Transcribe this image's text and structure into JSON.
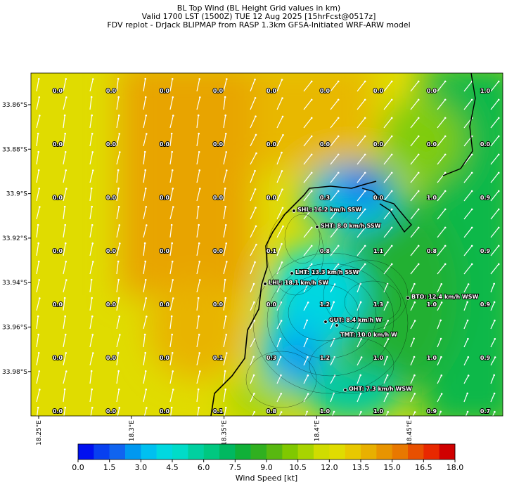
{
  "header": {
    "lines": [
      "BL Top Wind (BL Height Grid values in km)",
      "Valid 1700 LST (1500Z) TUE 12 Aug 2025 [15hrFcst@0517z]",
      "FDV replot - DrJack BLIPMAP from RASP 1.3km GFSA-Initiated WRF-ARW model"
    ]
  },
  "grid_labels": {
    "rows": [
      [
        "0.0",
        "0.0",
        "0.0",
        "0.0",
        "0.0",
        "0.0",
        "0.0",
        "0.0",
        "1.0"
      ],
      [
        "0.0",
        "0.0",
        "0.0",
        "0.0",
        "0.0",
        "0.0",
        "0.0",
        "0.0",
        "0.0"
      ],
      [
        "0.0",
        "0.0",
        "0.0",
        "0.0",
        "0.0",
        "0.3",
        "0.0",
        "1.0",
        "0.9"
      ],
      [
        "0.0",
        "0.0",
        "0.0",
        "0.0",
        "0.1",
        "0.8",
        "1.1",
        "0.8",
        "0.9"
      ],
      [
        "0.0",
        "0.0",
        "0.0",
        "0.0",
        "0.0",
        "1.2",
        "1.3",
        "1.0",
        "0.9"
      ],
      [
        "0.0",
        "0.0",
        "0.0",
        "0.1",
        "0.3",
        "1.2",
        "1.0",
        "1.0",
        "0.9"
      ],
      [
        "0.0",
        "0.0",
        "0.0",
        "0.1",
        "0.8",
        "1.0",
        "1.0",
        "0.9",
        "0.7"
      ]
    ]
  },
  "stations": [
    "SHL: 16.2 km/h SSW",
    "SHT: 8.0 km/h SSW",
    "LHT: 13.3 km/h SSW",
    "LHL: 18.1 km/h SW",
    "BTO: 12.4 km/h WSW",
    "GUT: 8.4 km/h W",
    "TMT: 10.0 km/h W",
    "OHT: 7.3 km/h WSW"
  ],
  "lat_labels": [
    "33.86°S",
    "33.88°S",
    "33.9°S",
    "33.92°S",
    "33.94°S",
    "33.96°S",
    "33.98°S"
  ],
  "lon_labels": [
    "18.25°E",
    "18.3°E",
    "18.35°E",
    "18.4°E",
    "18.45°E"
  ],
  "colorbar": {
    "label": "Wind Speed [kt]",
    "lim": [
      0,
      18
    ],
    "ticks": [
      {
        "value": 0,
        "label": "0.0"
      },
      {
        "value": 1.5,
        "label": "1.5"
      },
      {
        "value": 3,
        "label": "3.0"
      },
      {
        "value": 4.5,
        "label": "4.5"
      },
      {
        "value": 6,
        "label": "6.0"
      },
      {
        "value": 7.5,
        "label": "7.5"
      },
      {
        "value": 9,
        "label": "9.0"
      },
      {
        "value": 10.5,
        "label": "10.5"
      },
      {
        "value": 12,
        "label": "12.0"
      },
      {
        "value": 13.5,
        "label": "13.5"
      },
      {
        "value": 15,
        "label": "15.0"
      },
      {
        "value": 16.5,
        "label": "16.5"
      },
      {
        "value": 18,
        "label": "18.0"
      }
    ],
    "colors": [
      "#0010f0",
      "#0840f0",
      "#1064f0",
      "#0098f0",
      "#00c0f0",
      "#00d8e0",
      "#00dcc8",
      "#00d0a0",
      "#00c880",
      "#00b860",
      "#10b038",
      "#30b020",
      "#58b810",
      "#80c800",
      "#a8d400",
      "#d0dc00",
      "#e0dc00",
      "#e8c800",
      "#e8b000",
      "#e89400",
      "#e87800",
      "#e85000",
      "#e82800",
      "#d00000"
    ]
  }
}
